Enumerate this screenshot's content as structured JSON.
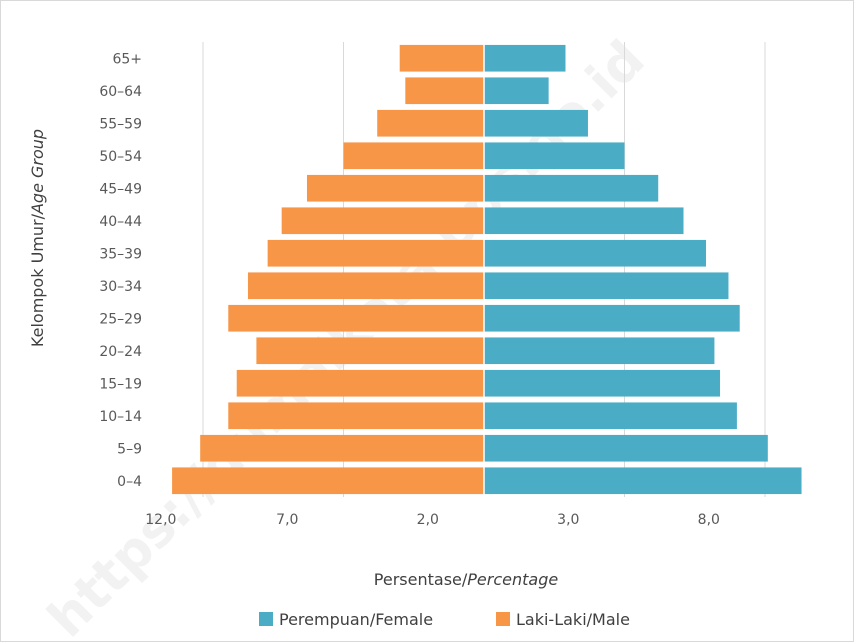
{
  "watermark": "https://dumaikota.bps.go.id",
  "chart_data": {
    "type": "bar",
    "orientation": "horizontal-population-pyramid",
    "categories": [
      "0–4",
      "5–9",
      "10–14",
      "15–19",
      "20–24",
      "25–29",
      "30–34",
      "35–39",
      "40–44",
      "45–49",
      "50–54",
      "55–59",
      "60–64",
      "65+"
    ],
    "series": [
      {
        "name": "Perempuan/Female",
        "color": "#4bacc6",
        "side": "right",
        "values": [
          11.3,
          10.1,
          9.0,
          8.4,
          8.2,
          9.1,
          8.7,
          7.9,
          7.1,
          6.2,
          5.0,
          3.7,
          2.3,
          2.9
        ]
      },
      {
        "name": "Laki-Laki/Male",
        "color": "#f79646",
        "side": "left",
        "values": [
          11.1,
          10.1,
          9.1,
          8.8,
          8.1,
          9.1,
          8.4,
          7.7,
          7.2,
          6.3,
          5.0,
          3.8,
          2.8,
          3.0
        ]
      }
    ],
    "xticks": [
      "12,0",
      "7,0",
      "2,0",
      "3,0",
      "8,0"
    ],
    "xlabel_main": "Persentase/",
    "xlabel_italic": "Percentage",
    "ylabel_main": "Kelompok Umur/",
    "ylabel_italic": "Age Group",
    "grid": true,
    "legend_position": "bottom"
  }
}
